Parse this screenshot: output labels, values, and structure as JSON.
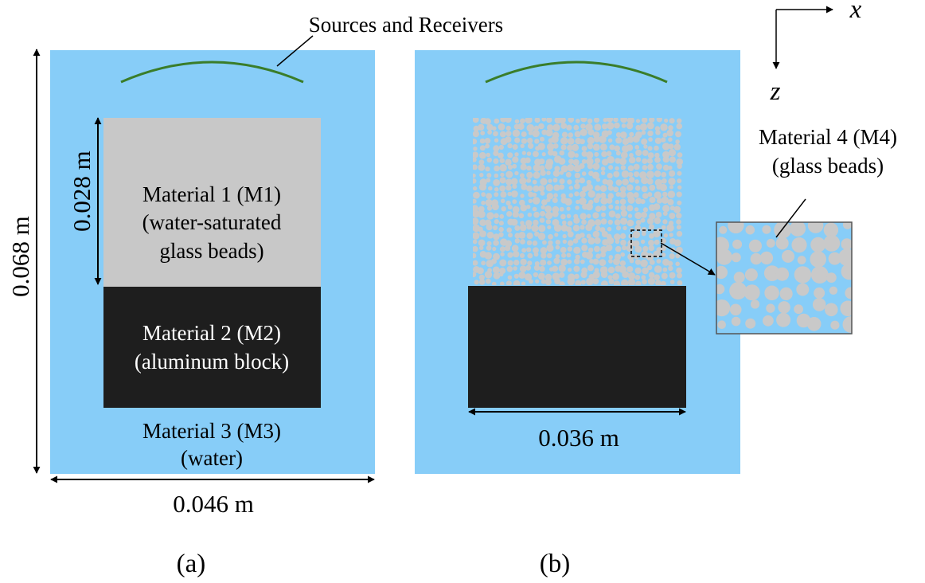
{
  "colors": {
    "water": "#87CDF8",
    "glass_beads_saturated": "#C8C8C8",
    "aluminum": "#1E1E1E",
    "source_line": "#3A7D2A",
    "bead": "#C9C9C9",
    "text_light": "#FFFFFF",
    "text_dark": "#000000"
  },
  "sources_label": "Sources and Receivers",
  "axes": {
    "x": "x",
    "z": "z"
  },
  "panel_a": {
    "m1": {
      "line1": "Material 1 (M1)",
      "line2": "(water-saturated",
      "line3": "glass beads)"
    },
    "m2": {
      "line1": "Material 2 (M2)",
      "line2": "(aluminum block)"
    },
    "m3": {
      "line1": "Material 3 (M3)",
      "line2": "(water)"
    },
    "dim_height": "0.068 m",
    "dim_width": "0.046 m",
    "dim_m1": "0.028 m",
    "caption": "(a)"
  },
  "panel_b": {
    "m4": {
      "line1": "Material 4 (M4)",
      "line2": "(glass beads)"
    },
    "dim_width": "0.036 m",
    "caption": "(b)"
  }
}
